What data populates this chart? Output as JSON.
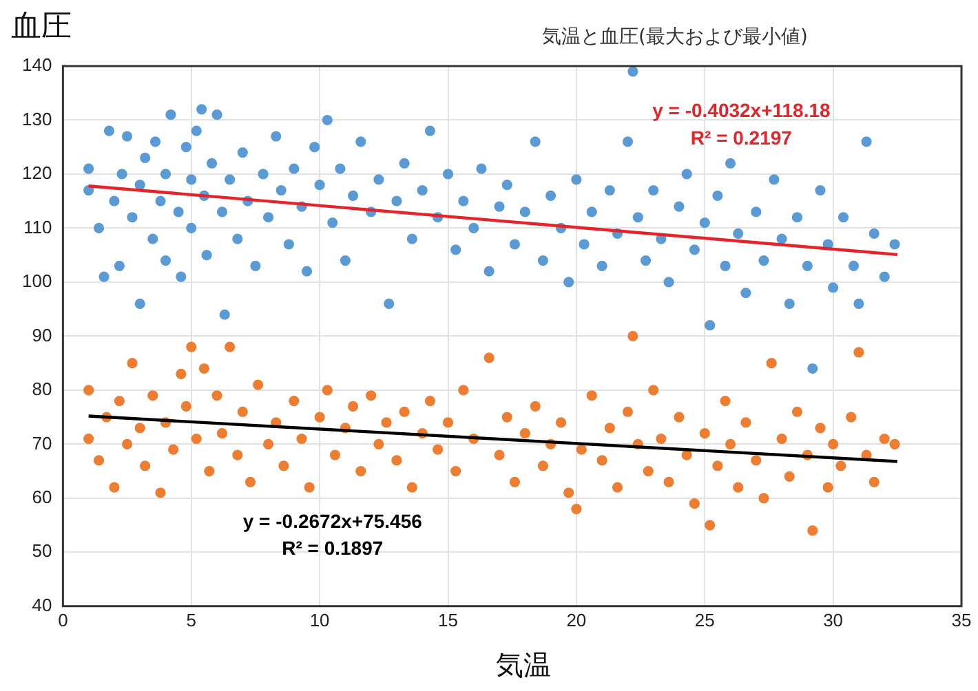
{
  "chart_data": {
    "type": "scatter",
    "title": "気温と血圧(最大および最小値)",
    "xlabel": "気温",
    "ylabel": "血圧",
    "xlim": [
      0,
      35
    ],
    "xticks": [
      0,
      5,
      10,
      15,
      20,
      25,
      30,
      35
    ],
    "ylim": [
      40,
      140
    ],
    "yticks": [
      40,
      50,
      60,
      70,
      80,
      90,
      100,
      110,
      120,
      130,
      140
    ],
    "grid": true,
    "legend": false,
    "marker": "circle",
    "series": [
      {
        "color": "#5b9bd5",
        "x": [
          1.0,
          1.0,
          1.4,
          1.6,
          1.8,
          2.0,
          2.2,
          2.3,
          2.5,
          2.7,
          3.0,
          3.0,
          3.2,
          3.5,
          3.6,
          3.8,
          4.0,
          4.0,
          4.2,
          4.5,
          4.6,
          4.8,
          5.0,
          5.0,
          5.2,
          5.4,
          5.5,
          5.6,
          5.8,
          6.0,
          6.2,
          6.3,
          6.5,
          6.8,
          7.0,
          7.2,
          7.5,
          7.8,
          8.0,
          8.3,
          8.5,
          8.8,
          9.0,
          9.3,
          9.5,
          9.8,
          10.0,
          10.3,
          10.5,
          10.8,
          11.0,
          11.3,
          11.6,
          12.0,
          12.3,
          12.7,
          13.0,
          13.3,
          13.6,
          14.0,
          14.3,
          14.6,
          15.0,
          15.3,
          15.6,
          16.0,
          16.3,
          16.6,
          17.0,
          17.3,
          17.6,
          18.0,
          18.4,
          18.7,
          19.0,
          19.4,
          19.7,
          20.0,
          20.3,
          20.6,
          21.0,
          21.3,
          21.6,
          22.0,
          22.2,
          22.4,
          22.7,
          23.0,
          23.3,
          23.6,
          24.0,
          24.3,
          24.6,
          25.0,
          25.2,
          25.5,
          25.8,
          26.0,
          26.3,
          26.6,
          27.0,
          27.3,
          27.7,
          28.0,
          28.3,
          28.6,
          29.0,
          29.2,
          29.5,
          29.8,
          30.0,
          30.4,
          30.8,
          31.0,
          31.3,
          31.6,
          32.0,
          32.4
        ],
        "values": [
          121,
          117,
          110,
          101,
          128,
          115,
          103,
          120,
          127,
          112,
          118,
          96,
          123,
          108,
          126,
          115,
          120,
          104,
          131,
          113,
          101,
          125,
          119,
          110,
          128,
          132,
          116,
          105,
          122,
          131,
          113,
          94,
          119,
          108,
          124,
          115,
          103,
          120,
          112,
          127,
          117,
          107,
          121,
          114,
          102,
          125,
          118,
          130,
          111,
          121,
          104,
          116,
          126,
          113,
          119,
          96,
          115,
          122,
          108,
          117,
          128,
          112,
          120,
          106,
          115,
          110,
          121,
          102,
          114,
          118,
          107,
          113,
          126,
          104,
          116,
          110,
          100,
          119,
          107,
          113,
          103,
          117,
          109,
          126,
          139,
          112,
          104,
          117,
          108,
          100,
          114,
          120,
          106,
          111,
          92,
          116,
          103,
          122,
          109,
          98,
          113,
          104,
          119,
          108,
          96,
          112,
          103,
          84,
          117,
          107,
          99,
          112,
          103,
          96,
          126,
          109,
          101,
          107
        ]
      },
      {
        "color": "#ed7d31",
        "x": [
          1.0,
          1.0,
          1.4,
          1.7,
          2.0,
          2.2,
          2.5,
          2.7,
          3.0,
          3.2,
          3.5,
          3.8,
          4.0,
          4.3,
          4.6,
          4.8,
          5.0,
          5.2,
          5.5,
          5.7,
          6.0,
          6.2,
          6.5,
          6.8,
          7.0,
          7.3,
          7.6,
          8.0,
          8.3,
          8.6,
          9.0,
          9.3,
          9.6,
          10.0,
          10.3,
          10.6,
          11.0,
          11.3,
          11.6,
          12.0,
          12.3,
          12.6,
          13.0,
          13.3,
          13.6,
          14.0,
          14.3,
          14.6,
          15.0,
          15.3,
          15.6,
          16.0,
          16.6,
          17.0,
          17.3,
          17.6,
          18.0,
          18.4,
          18.7,
          19.0,
          19.4,
          19.7,
          20.0,
          20.2,
          20.6,
          21.0,
          21.3,
          21.6,
          22.0,
          22.2,
          22.4,
          22.8,
          23.0,
          23.3,
          23.6,
          24.0,
          24.3,
          24.6,
          25.0,
          25.2,
          25.5,
          25.8,
          26.0,
          26.3,
          26.6,
          27.0,
          27.3,
          27.6,
          28.0,
          28.3,
          28.6,
          29.0,
          29.2,
          29.5,
          29.8,
          30.0,
          30.3,
          30.7,
          31.0,
          31.3,
          31.6,
          32.0,
          32.4
        ],
        "values": [
          80,
          71,
          67,
          75,
          62,
          78,
          70,
          85,
          73,
          66,
          79,
          61,
          74,
          69,
          83,
          77,
          88,
          71,
          84,
          65,
          79,
          72,
          88,
          68,
          76,
          63,
          81,
          70,
          74,
          66,
          78,
          71,
          62,
          75,
          80,
          68,
          73,
          77,
          65,
          79,
          70,
          74,
          67,
          76,
          62,
          72,
          78,
          69,
          74,
          65,
          80,
          71,
          86,
          68,
          75,
          63,
          72,
          77,
          66,
          70,
          74,
          61,
          58,
          69,
          79,
          67,
          73,
          62,
          76,
          90,
          70,
          65,
          80,
          71,
          63,
          75,
          68,
          59,
          72,
          55,
          66,
          78,
          70,
          62,
          74,
          67,
          60,
          85,
          71,
          64,
          76,
          68,
          54,
          73,
          62,
          70,
          66,
          75,
          87,
          68,
          63,
          71,
          70
        ]
      },
      {
        "type": "line",
        "marker": "none",
        "color": "#e3242b",
        "x": [
          1,
          32.5
        ],
        "values": [
          117.8,
          105.1
        ]
      },
      {
        "type": "line",
        "marker": "none",
        "color": "#000000",
        "x": [
          1,
          32.5
        ],
        "values": [
          75.2,
          66.8
        ]
      }
    ],
    "annotations": [
      "y = -0.4032x+118.18",
      "R² = 0.2197",
      "y = -0.2672x+75.456",
      "R² = 0.1897"
    ]
  }
}
